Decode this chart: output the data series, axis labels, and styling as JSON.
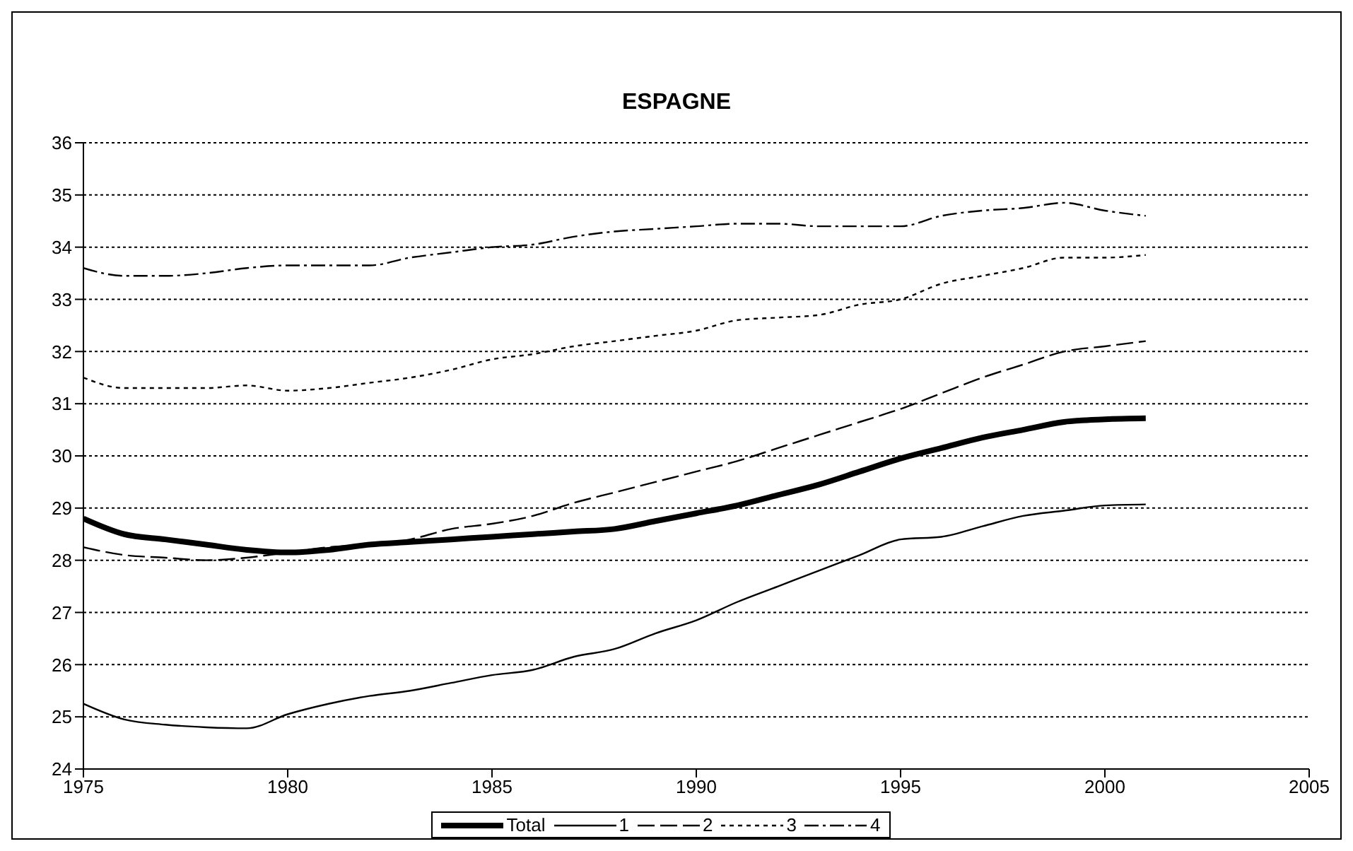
{
  "chart_data": {
    "type": "line",
    "title": "ESPAGNE",
    "x": [
      1975,
      1976,
      1977,
      1978,
      1979,
      1980,
      1981,
      1982,
      1983,
      1984,
      1985,
      1986,
      1987,
      1988,
      1989,
      1990,
      1991,
      1992,
      1993,
      1994,
      1995,
      1996,
      1997,
      1998,
      1999,
      2000,
      2001
    ],
    "series": [
      {
        "name": "Total",
        "color": "#000000",
        "line_style": "solid",
        "values": [
          28.8,
          28.5,
          28.4,
          28.3,
          28.2,
          28.15,
          28.2,
          28.3,
          28.35,
          28.4,
          28.45,
          28.5,
          28.55,
          28.6,
          28.75,
          28.9,
          29.05,
          29.25,
          29.45,
          29.7,
          29.95,
          30.15,
          30.35,
          30.5,
          30.65,
          30.7,
          30.72
        ]
      },
      {
        "name": "1",
        "color": "#000000",
        "line_style": "solid",
        "values": [
          25.25,
          24.95,
          24.85,
          24.8,
          24.78,
          25.05,
          25.25,
          25.4,
          25.5,
          25.65,
          25.8,
          25.9,
          26.15,
          26.3,
          26.6,
          26.85,
          27.2,
          27.5,
          27.8,
          28.1,
          28.4,
          28.45,
          28.65,
          28.85,
          28.95,
          29.05,
          29.07
        ]
      },
      {
        "name": "2",
        "color": "#000000",
        "line_style": "dashed",
        "values": [
          28.25,
          28.1,
          28.05,
          28.0,
          28.05,
          28.15,
          28.25,
          28.3,
          28.4,
          28.6,
          28.7,
          28.85,
          29.1,
          29.3,
          29.5,
          29.7,
          29.9,
          30.15,
          30.4,
          30.65,
          30.9,
          31.2,
          31.5,
          31.75,
          32.0,
          32.1,
          32.2
        ]
      },
      {
        "name": "3",
        "color": "#000000",
        "line_style": "dotted",
        "values": [
          31.5,
          31.3,
          31.3,
          31.3,
          31.35,
          31.25,
          31.3,
          31.4,
          31.5,
          31.65,
          31.85,
          31.95,
          32.1,
          32.2,
          32.3,
          32.4,
          32.6,
          32.65,
          32.7,
          32.9,
          33.0,
          33.3,
          33.45,
          33.6,
          33.8,
          33.8,
          33.85
        ]
      },
      {
        "name": "4",
        "color": "#000000",
        "line_style": "dashdot",
        "values": [
          33.6,
          33.45,
          33.45,
          33.5,
          33.6,
          33.65,
          33.65,
          33.65,
          33.8,
          33.9,
          34.0,
          34.05,
          34.2,
          34.3,
          34.35,
          34.4,
          34.45,
          34.45,
          34.4,
          34.4,
          34.4,
          34.6,
          34.7,
          34.75,
          34.85,
          34.7,
          34.6
        ]
      }
    ],
    "xlim": [
      1975,
      2005
    ],
    "xticks": [
      1975,
      1980,
      1985,
      1990,
      1995,
      2000,
      2005
    ],
    "ylim": [
      24,
      36
    ],
    "yticks": [
      24,
      25,
      26,
      27,
      28,
      29,
      30,
      31,
      32,
      33,
      34,
      35,
      36
    ],
    "grid": "y",
    "legend": "bottom",
    "marker": "none"
  }
}
